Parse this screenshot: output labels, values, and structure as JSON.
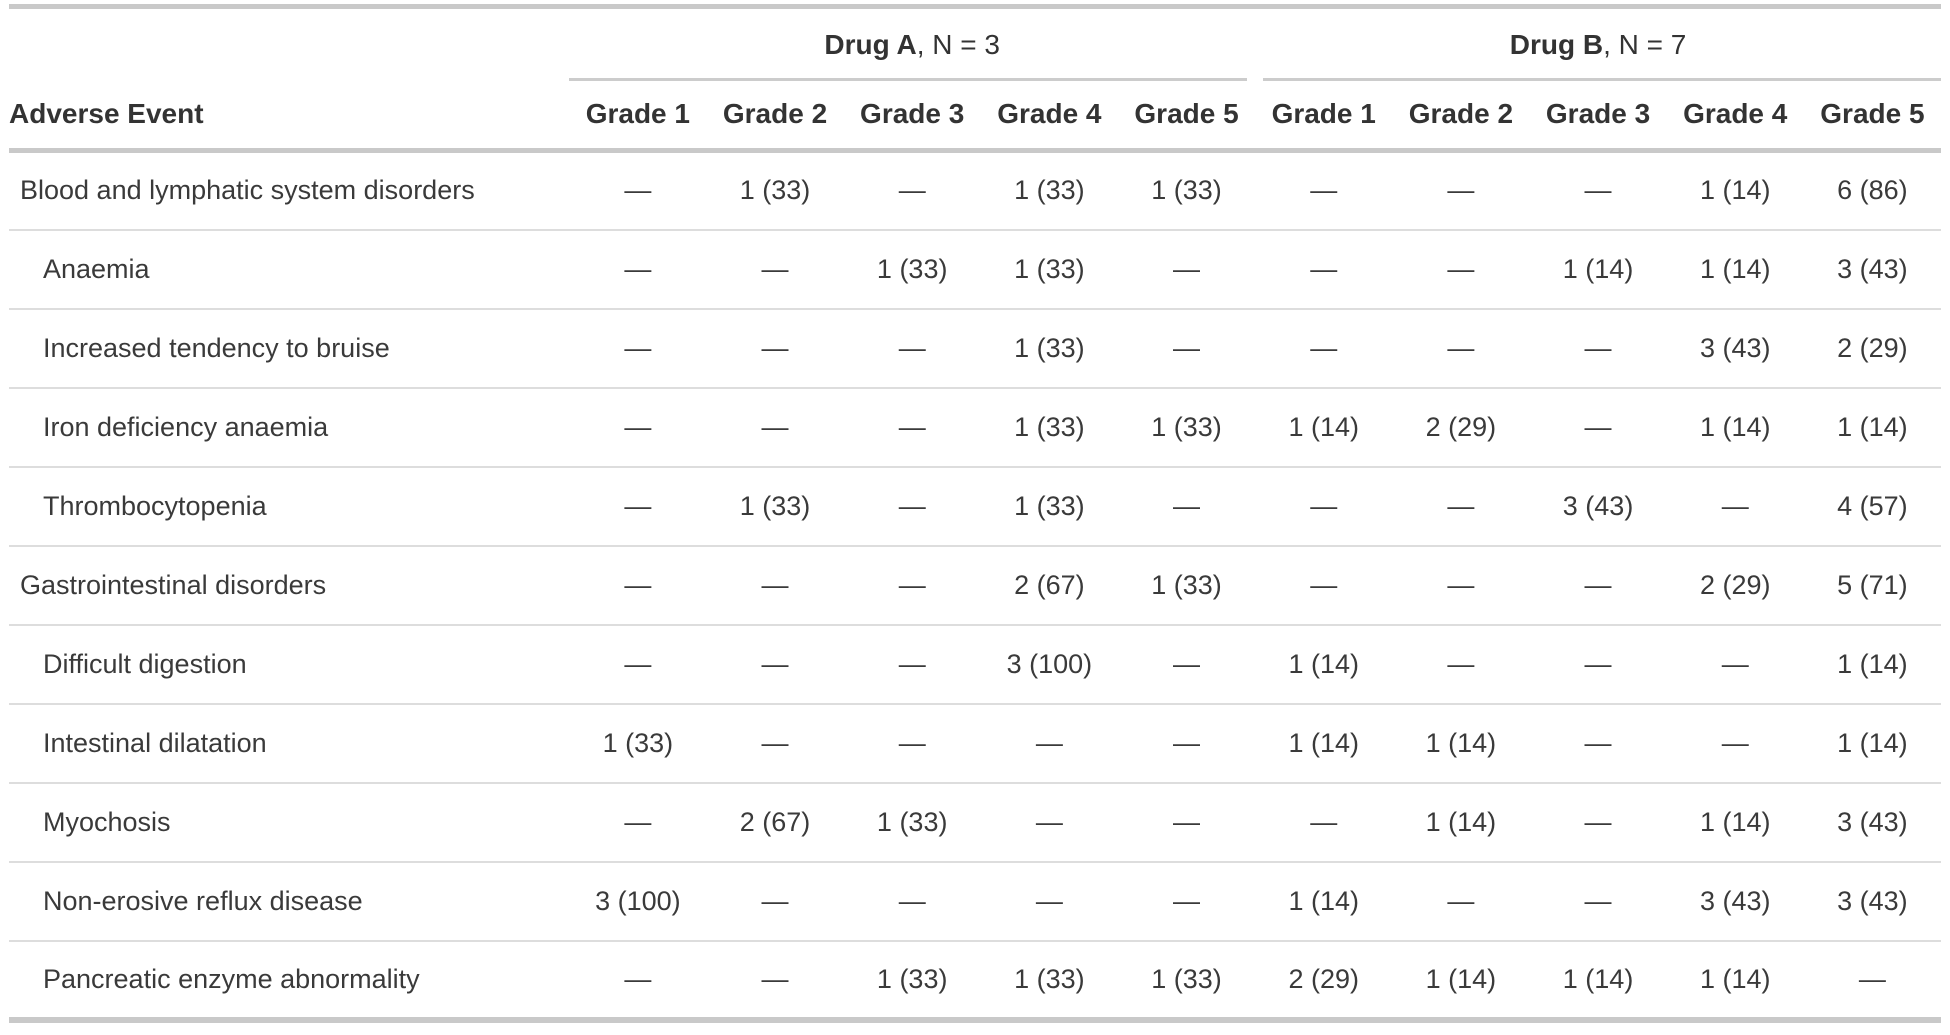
{
  "chart_data": {
    "type": "table",
    "row_header": "Adverse Event",
    "groups": [
      {
        "name": "Drug A",
        "n_label": ", N = 3"
      },
      {
        "name": "Drug B",
        "n_label": ", N = 7"
      }
    ],
    "grade_headers": [
      "Grade 1",
      "Grade 2",
      "Grade 3",
      "Grade 4",
      "Grade 5"
    ],
    "empty_cell": "—",
    "rows": [
      {
        "label": "Blood and lymphatic system disorders",
        "indent": false,
        "drug_a": [
          "—",
          "1 (33)",
          "—",
          "1 (33)",
          "1 (33)"
        ],
        "drug_b": [
          "—",
          "—",
          "—",
          "1 (14)",
          "6 (86)"
        ]
      },
      {
        "label": "Anaemia",
        "indent": true,
        "drug_a": [
          "—",
          "—",
          "1 (33)",
          "1 (33)",
          "—"
        ],
        "drug_b": [
          "—",
          "—",
          "1 (14)",
          "1 (14)",
          "3 (43)"
        ]
      },
      {
        "label": "Increased tendency to bruise",
        "indent": true,
        "drug_a": [
          "—",
          "—",
          "—",
          "1 (33)",
          "—"
        ],
        "drug_b": [
          "—",
          "—",
          "—",
          "3 (43)",
          "2 (29)"
        ]
      },
      {
        "label": "Iron deficiency anaemia",
        "indent": true,
        "drug_a": [
          "—",
          "—",
          "—",
          "1 (33)",
          "1 (33)"
        ],
        "drug_b": [
          "1 (14)",
          "2 (29)",
          "—",
          "1 (14)",
          "1 (14)"
        ]
      },
      {
        "label": "Thrombocytopenia",
        "indent": true,
        "drug_a": [
          "—",
          "1 (33)",
          "—",
          "1 (33)",
          "—"
        ],
        "drug_b": [
          "—",
          "—",
          "3 (43)",
          "—",
          "4 (57)"
        ]
      },
      {
        "label": "Gastrointestinal disorders",
        "indent": false,
        "drug_a": [
          "—",
          "—",
          "—",
          "2 (67)",
          "1 (33)"
        ],
        "drug_b": [
          "—",
          "—",
          "—",
          "2 (29)",
          "5 (71)"
        ]
      },
      {
        "label": "Difficult digestion",
        "indent": true,
        "drug_a": [
          "—",
          "—",
          "—",
          "3 (100)",
          "—"
        ],
        "drug_b": [
          "1 (14)",
          "—",
          "—",
          "—",
          "1 (14)"
        ]
      },
      {
        "label": "Intestinal dilatation",
        "indent": true,
        "drug_a": [
          "1 (33)",
          "—",
          "—",
          "—",
          "—"
        ],
        "drug_b": [
          "1 (14)",
          "1 (14)",
          "—",
          "—",
          "1 (14)"
        ]
      },
      {
        "label": "Myochosis",
        "indent": true,
        "drug_a": [
          "—",
          "2 (67)",
          "1 (33)",
          "—",
          "—"
        ],
        "drug_b": [
          "—",
          "1 (14)",
          "—",
          "1 (14)",
          "3 (43)"
        ]
      },
      {
        "label": "Non-erosive reflux disease",
        "indent": true,
        "drug_a": [
          "3 (100)",
          "—",
          "—",
          "—",
          "—"
        ],
        "drug_b": [
          "1 (14)",
          "—",
          "—",
          "3 (43)",
          "3 (43)"
        ]
      },
      {
        "label": "Pancreatic enzyme abnormality",
        "indent": true,
        "drug_a": [
          "—",
          "—",
          "1 (33)",
          "1 (33)",
          "1 (33)"
        ],
        "drug_b": [
          "2 (29)",
          "1 (14)",
          "1 (14)",
          "1 (14)",
          "—"
        ]
      }
    ],
    "colors": {
      "thick_border": "#c9c9c9",
      "thin_border": "#dddddd",
      "spanner_underline": "#cccccc",
      "header_text": "#333333",
      "body_text": "#3a3a3a"
    }
  }
}
